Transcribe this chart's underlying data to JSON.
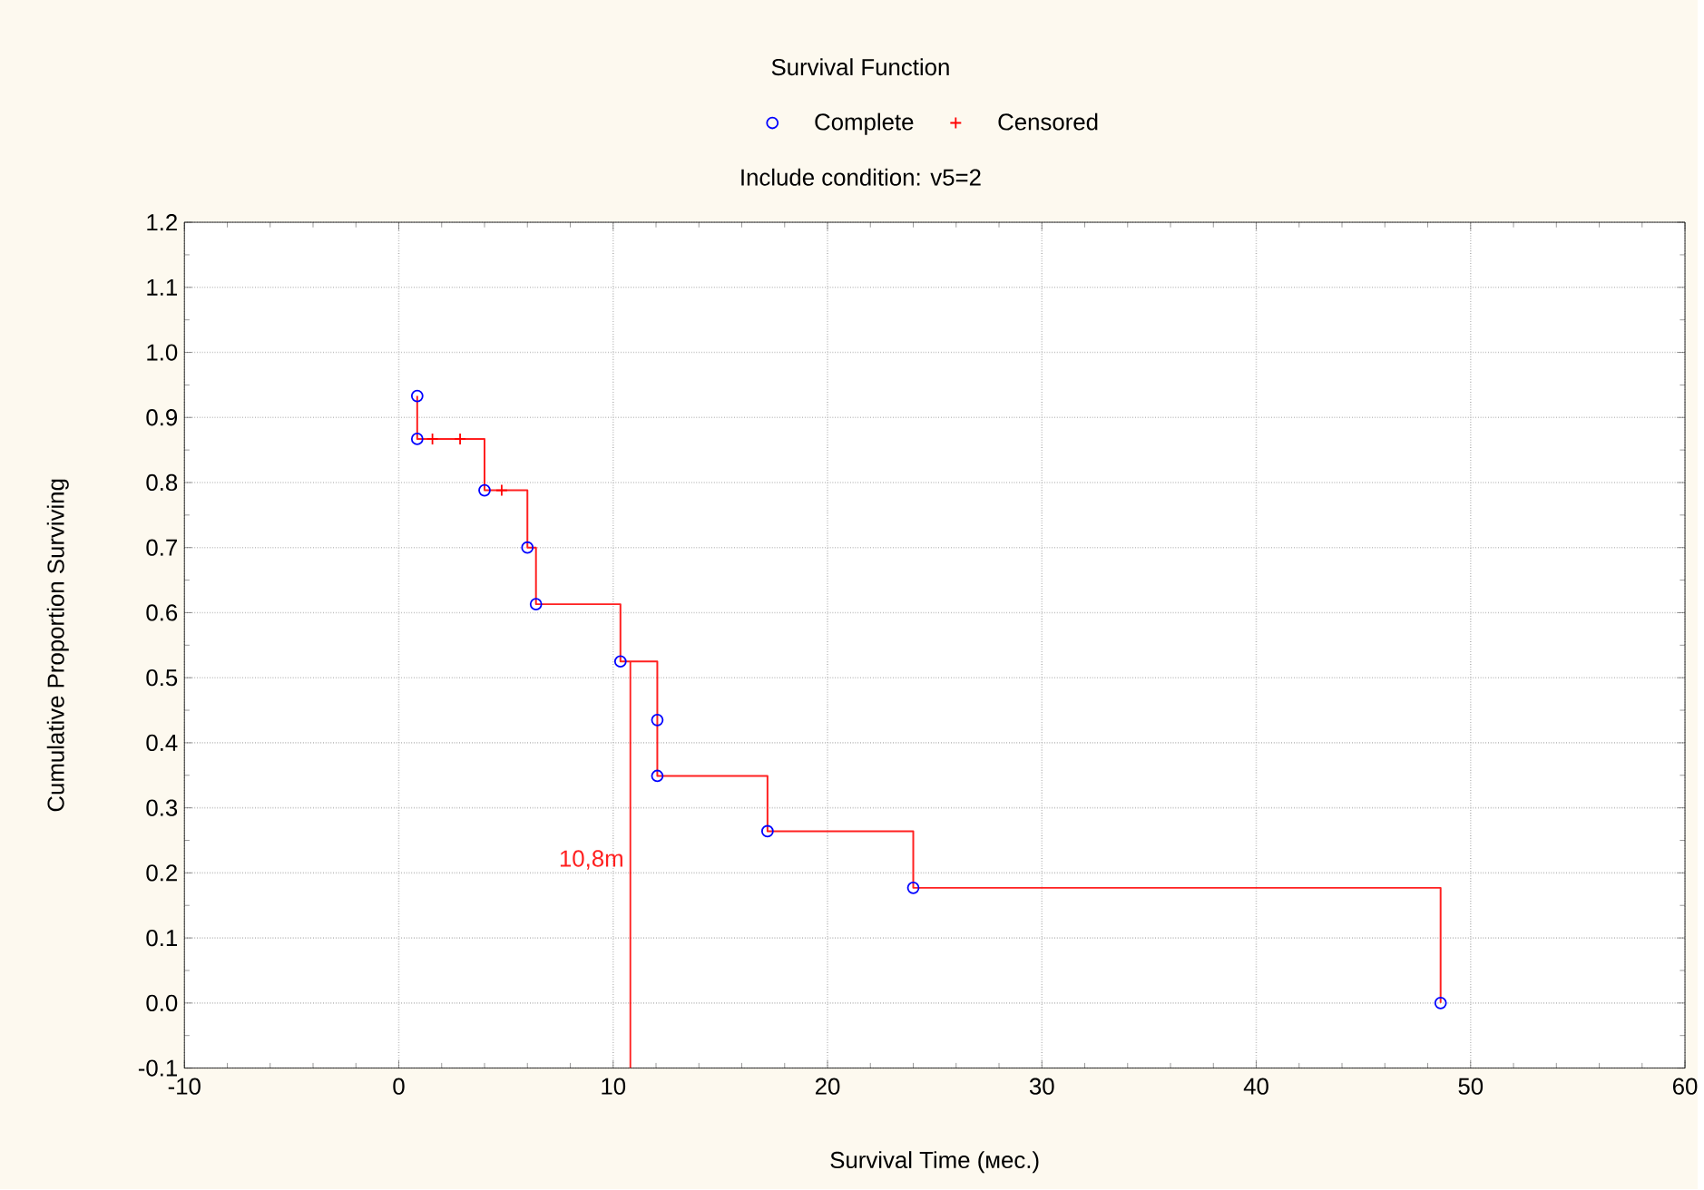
{
  "chart_data": {
    "type": "step",
    "title": "Survival Function",
    "subtitle": "Include condition: v5=2",
    "xlabel": "Survival Time (мес.)",
    "ylabel": "Cumulative Proportion Surviving",
    "xlim": [
      -10,
      60
    ],
    "xticks": [
      -10,
      0,
      10,
      20,
      30,
      40,
      50,
      60
    ],
    "ylim": [
      -0.1,
      1.2
    ],
    "yticks": [
      {
        "value": -0.1,
        "label": "-0.1"
      },
      {
        "value": 0,
        "label": "0.0"
      },
      {
        "value": 0.1,
        "label": "0.1"
      },
      {
        "value": 0.2,
        "label": "0.2"
      },
      {
        "value": 0.3,
        "label": "0.3"
      },
      {
        "value": 0.4,
        "label": "0.4"
      },
      {
        "value": 0.5,
        "label": "0.5"
      },
      {
        "value": 0.6,
        "label": "0.6"
      },
      {
        "value": 0.7,
        "label": "0.7"
      },
      {
        "value": 0.8,
        "label": "0.8"
      },
      {
        "value": 0.9,
        "label": "0.9"
      },
      {
        "value": 1.0,
        "label": "1.0"
      },
      {
        "value": 1.1,
        "label": "1.1"
      },
      {
        "value": 1.2,
        "label": "1.2"
      }
    ],
    "grid": true,
    "legend": "top",
    "series": [
      {
        "color": "#ff2020",
        "marker": "none",
        "x": [
          0.86,
          0.86,
          4.0,
          6.0,
          6.4,
          10.34,
          12.06,
          17.2,
          24.0,
          48.6
        ],
        "values": [
          0.933,
          0.867,
          0.788,
          0.7,
          0.613,
          0.525,
          0.349,
          0.264,
          0.177,
          0
        ]
      },
      {
        "type": "scatter",
        "name": "Complete",
        "color": "#0000ff",
        "marker": "circle",
        "x": [
          0.86,
          0.86,
          4.0,
          6.0,
          6.4,
          10.34,
          12.06,
          12.06,
          17.2,
          24.0,
          48.6
        ],
        "values": [
          0.933,
          0.867,
          0.788,
          0.7,
          0.613,
          0.525,
          0.435,
          0.349,
          0.264,
          0.177,
          0
        ]
      },
      {
        "type": "scatter",
        "name": "Censored",
        "color": "#ff0000",
        "marker": "cross",
        "x": [
          1.57,
          2.86,
          4.8
        ],
        "values": [
          0.867,
          0.867,
          0.788
        ]
      }
    ],
    "ref_lines": [
      {
        "axis": "x",
        "value": 10.8,
        "label": "10,8m",
        "color": "#ff2020"
      }
    ]
  }
}
